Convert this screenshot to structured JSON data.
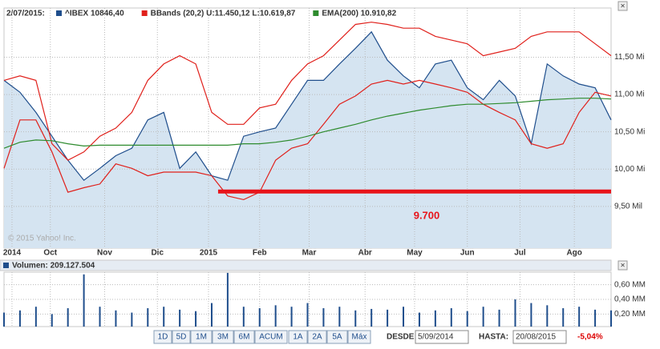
{
  "chart_data": [
    {
      "type": "line",
      "legend_date": "2/07/2015:",
      "watermark": "© 2015 Yahoo! Inc.",
      "x": [
        0,
        1,
        2,
        3,
        4,
        5,
        6,
        7,
        8,
        9,
        10,
        11,
        12,
        13,
        14,
        15,
        16,
        17,
        18,
        19,
        20,
        21,
        22,
        23,
        24,
        25,
        26,
        27,
        28,
        29,
        30,
        31,
        32,
        33,
        34,
        35,
        36,
        37,
        38
      ],
      "xlim": [
        0,
        38
      ],
      "xticks": [
        {
          "value": 0.5,
          "label": "2014"
        },
        {
          "value": 2.9,
          "label": "Oct"
        },
        {
          "value": 6.3,
          "label": "Nov"
        },
        {
          "value": 9.6,
          "label": "Dic"
        },
        {
          "value": 12.8,
          "label": "2015"
        },
        {
          "value": 16,
          "label": "Feb"
        },
        {
          "value": 19.1,
          "label": "Mar"
        },
        {
          "value": 22.6,
          "label": "Abr"
        },
        {
          "value": 25.7,
          "label": "May"
        },
        {
          "value": 29,
          "label": "Jun"
        },
        {
          "value": 32.3,
          "label": "Jul"
        },
        {
          "value": 35.7,
          "label": "Ago"
        }
      ],
      "ylim": [
        8.94,
        12.16
      ],
      "yticks": [
        {
          "value": 9.5,
          "label": "9,50 Mil"
        },
        {
          "value": 10,
          "label": "10,00 Mi"
        },
        {
          "value": 10.5,
          "label": "10,50 Mi"
        },
        {
          "value": 11,
          "label": "11,00 Mi"
        },
        {
          "value": 11.5,
          "label": "11,50 Mi"
        }
      ],
      "grid": true,
      "series": [
        {
          "name": "^IBEX 10846,40",
          "color": "#1f4e8c",
          "fill": "#d5e4f1",
          "values": [
            11.19,
            11.03,
            10.76,
            10.44,
            10.12,
            9.85,
            10.01,
            10.18,
            10.28,
            10.66,
            10.76,
            10.01,
            10.23,
            9.91,
            9.85,
            10.44,
            10.5,
            10.55,
            10.87,
            11.19,
            11.19,
            11.41,
            11.62,
            11.84,
            11.46,
            11.25,
            11.09,
            11.41,
            11.46,
            11.09,
            10.93,
            11.19,
            10.98,
            10.34,
            11.41,
            11.25,
            11.14,
            11.09,
            10.66
          ]
        },
        {
          "name": "BBands (20,2) U:11.450,12 L:10.619,87",
          "color": "#e0201b",
          "values": [
            11.19,
            11.25,
            11.19,
            10.34,
            10.12,
            10.23,
            10.44,
            10.55,
            10.76,
            11.19,
            11.41,
            11.52,
            11.41,
            10.76,
            10.6,
            10.6,
            10.82,
            10.87,
            11.19,
            11.41,
            11.52,
            11.73,
            11.94,
            11.97,
            11.94,
            11.89,
            11.89,
            11.78,
            11.73,
            11.68,
            11.52,
            11.57,
            11.62,
            11.78,
            11.84,
            11.84,
            11.84,
            11.68,
            11.52
          ]
        },
        {
          "name": "BBands lower",
          "legend": false,
          "color": "#e0201b",
          "values": [
            10.01,
            10.66,
            10.66,
            10.23,
            9.69,
            9.75,
            9.8,
            10.07,
            10.01,
            9.91,
            9.96,
            9.96,
            9.96,
            9.91,
            9.64,
            9.59,
            9.69,
            10.12,
            10.28,
            10.34,
            10.6,
            10.87,
            10.98,
            11.14,
            11.19,
            11.14,
            11.19,
            11.14,
            11.09,
            11.03,
            10.87,
            10.76,
            10.66,
            10.34,
            10.28,
            10.34,
            10.76,
            11.03,
            10.98
          ]
        },
        {
          "name": "EMA(200) 10.910,82",
          "color": "#2e8b2e",
          "values": [
            10.28,
            10.36,
            10.39,
            10.38,
            10.34,
            10.31,
            10.32,
            10.32,
            10.32,
            10.32,
            10.32,
            10.32,
            10.32,
            10.32,
            10.32,
            10.34,
            10.34,
            10.36,
            10.39,
            10.44,
            10.5,
            10.55,
            10.6,
            10.66,
            10.71,
            10.75,
            10.79,
            10.82,
            10.85,
            10.87,
            10.87,
            10.88,
            10.89,
            10.91,
            10.93,
            10.94,
            10.95,
            10.95,
            10.94
          ]
        }
      ],
      "hline": {
        "value": 9.7,
        "label": "9.700",
        "from": 13.4,
        "color": "#e8141b"
      }
    },
    {
      "type": "bar",
      "title": "Volumen: 209.127.504",
      "color": "#1f4e8c",
      "x": [
        0,
        1,
        2,
        3,
        4,
        5,
        6,
        7,
        8,
        9,
        10,
        11,
        12,
        13,
        14,
        15,
        16,
        17,
        18,
        19,
        20,
        21,
        22,
        23,
        24,
        25,
        26,
        27,
        28,
        29,
        30,
        31,
        32,
        33,
        34,
        35,
        36,
        37,
        38
      ],
      "xlim": [
        0,
        38
      ],
      "ylim": [
        0.03,
        0.77
      ],
      "yticks": [
        {
          "value": 0.2,
          "label": "0,20 MM"
        },
        {
          "value": 0.4,
          "label": "0,40 MM"
        },
        {
          "value": 0.6,
          "label": "0,60 MM"
        }
      ],
      "values": [
        0.22,
        0.25,
        0.3,
        0.2,
        0.28,
        0.74,
        0.3,
        0.25,
        0.22,
        0.28,
        0.3,
        0.26,
        0.24,
        0.35,
        0.76,
        0.3,
        0.28,
        0.32,
        0.3,
        0.35,
        0.28,
        0.3,
        0.25,
        0.27,
        0.26,
        0.3,
        0.22,
        0.25,
        0.28,
        0.24,
        0.3,
        0.26,
        0.4,
        0.35,
        0.32,
        0.28,
        0.3,
        0.26,
        0.25
      ]
    }
  ],
  "controls": {
    "buttons": [
      "1D",
      "5D",
      "1M",
      "3M",
      "6M",
      "ACUM",
      "1A",
      "2A",
      "5A",
      "Máx"
    ],
    "from_label": "DESDE:",
    "from_value": "5/09/2014",
    "to_label": "HASTA:",
    "to_value": "20/08/2015",
    "change": "-5,04%"
  }
}
